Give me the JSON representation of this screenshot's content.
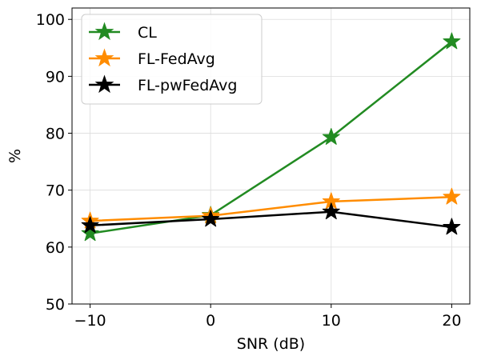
{
  "chart_data": {
    "type": "line",
    "title": "",
    "xlabel": "SNR (dB)",
    "ylabel": "%",
    "x": [
      -10,
      0,
      10,
      20
    ],
    "xticks": [
      "−10",
      "0",
      "10",
      "20"
    ],
    "xlim": [
      -11.5,
      21.5
    ],
    "ylim": [
      50,
      102
    ],
    "yticks": [
      "50",
      "60",
      "70",
      "80",
      "90",
      "100"
    ],
    "grid": true,
    "legend_position": "top-left",
    "marker": "star",
    "series": [
      {
        "name": "CL",
        "color": "#228b22",
        "values": [
          62.4,
          65.6,
          79.3,
          96.1
        ]
      },
      {
        "name": "FL-FedAvg",
        "color": "#ff8c00",
        "values": [
          64.6,
          65.5,
          68.0,
          68.8
        ]
      },
      {
        "name": "FL-pwFedAvg",
        "color": "#000000",
        "values": [
          63.8,
          64.9,
          66.2,
          63.5
        ]
      }
    ]
  }
}
